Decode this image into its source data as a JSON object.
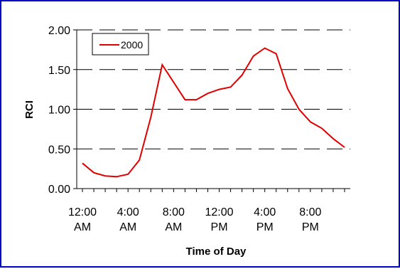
{
  "chart_data": {
    "type": "line",
    "title": "",
    "xlabel": "Time of Day",
    "ylabel": "RCI",
    "ylim": [
      0,
      2
    ],
    "yticks": [
      "0.00",
      "0.50",
      "1.00",
      "1.50",
      "2.00"
    ],
    "ytick_values": [
      0,
      0.5,
      1,
      1.5,
      2
    ],
    "xtick_labels": [
      [
        "12:00",
        "AM"
      ],
      [
        "4:00",
        "AM"
      ],
      [
        "8:00",
        "AM"
      ],
      [
        "12:00",
        "PM"
      ],
      [
        "4:00",
        "PM"
      ],
      [
        "8:00",
        "PM"
      ]
    ],
    "xtick_label_hours": [
      0,
      4,
      8,
      12,
      16,
      20
    ],
    "hours": [
      0,
      1,
      2,
      3,
      4,
      5,
      6,
      7,
      8,
      9,
      10,
      11,
      12,
      13,
      14,
      15,
      16,
      17,
      18,
      19,
      20,
      21,
      22,
      23
    ],
    "grid": "horizontal dashed",
    "legend_position": "top-left",
    "series": [
      {
        "name": "2000",
        "color": "#e00000",
        "values": [
          0.32,
          0.2,
          0.16,
          0.15,
          0.18,
          0.36,
          0.9,
          1.56,
          1.34,
          1.12,
          1.12,
          1.2,
          1.25,
          1.28,
          1.43,
          1.67,
          1.77,
          1.7,
          1.26,
          1.0,
          0.84,
          0.76,
          0.63,
          0.52
        ]
      }
    ]
  }
}
